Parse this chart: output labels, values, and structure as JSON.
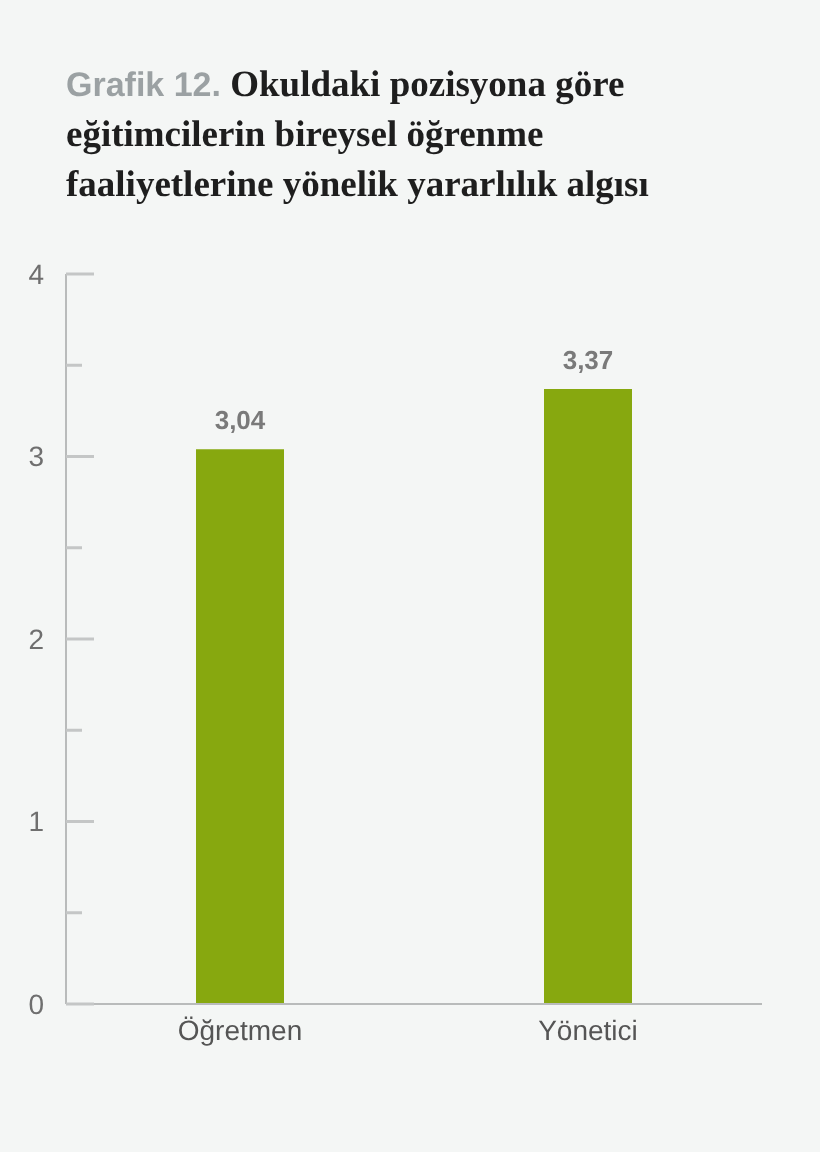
{
  "chart_data": {
    "type": "bar",
    "title": "Grafik 12. Okuldaki pozisyona göre eğitimcilerin bireysel öğrenme faaliyetlerine yönelik yararlılık algısı",
    "categories": [
      "Öğretmen",
      "Yönetici"
    ],
    "values": [
      3.04,
      3.37
    ],
    "value_labels": [
      "3,04",
      "3,37"
    ],
    "color": "#87a80f",
    "ylim": [
      0,
      4
    ],
    "yticks": [
      0,
      {
        "value": 0.5,
        "label": null
      },
      1,
      {
        "value": 1.5,
        "label": null
      },
      2,
      {
        "value": 2.5,
        "label": null
      },
      3,
      {
        "value": 3.5,
        "label": null
      },
      4
    ],
    "grid": false
  }
}
